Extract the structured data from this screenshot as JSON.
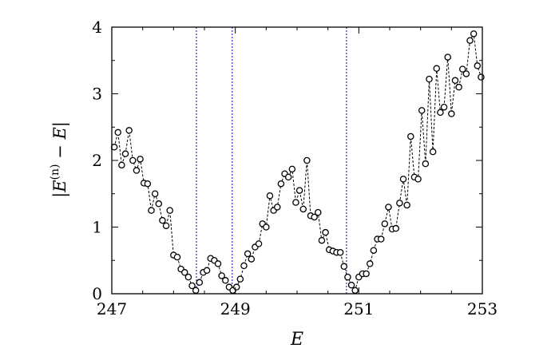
{
  "chart_data": {
    "type": "scatter",
    "xlabel": "E",
    "ylabel": "|E(n) − E|",
    "ylabel_parts": {
      "bar_left": "|",
      "E": "E",
      "sup": "(n)",
      "rest": " − ",
      "E2": "E",
      "bar_right": "|"
    },
    "xlim": [
      247,
      253
    ],
    "ylim": [
      0,
      4
    ],
    "xticks": [
      "247",
      "249",
      "251",
      "253"
    ],
    "yticks": [
      "0",
      "1",
      "2",
      "3",
      "4"
    ],
    "grid": false,
    "legend": "none",
    "colors": {
      "markers": "#000000",
      "connector": "#000000",
      "vlines": "#2b2bd9"
    },
    "vlines": [
      248.37,
      248.95,
      250.8
    ],
    "series": [
      {
        "x": [
          247.04,
          247.1,
          247.16,
          247.22,
          247.28,
          247.34,
          247.4,
          247.46,
          247.52,
          247.58,
          247.64,
          247.7,
          247.76,
          247.82,
          247.88,
          247.94,
          248.0,
          248.06,
          248.12,
          248.18,
          248.24,
          248.3,
          248.36,
          248.42,
          248.48,
          248.54,
          248.6,
          248.66,
          248.72,
          248.78,
          248.84,
          248.9,
          248.96,
          249.02,
          249.08,
          249.14,
          249.2,
          249.26,
          249.32,
          249.38,
          249.44,
          249.5,
          249.56,
          249.62,
          249.68,
          249.74,
          249.8,
          249.86,
          249.92,
          249.98,
          250.04,
          250.1,
          250.16,
          250.22,
          250.28,
          250.34,
          250.4,
          250.46,
          250.52,
          250.58,
          250.64,
          250.7,
          250.76,
          250.82,
          250.88,
          250.94,
          251.0,
          251.06,
          251.12,
          251.18,
          251.24,
          251.3,
          251.36,
          251.42,
          251.48,
          251.54,
          251.6,
          251.66,
          251.72,
          251.78,
          251.84,
          251.9,
          251.96,
          252.02,
          252.08,
          252.14,
          252.2,
          252.26,
          252.32,
          252.38,
          252.44,
          252.5,
          252.56,
          252.62,
          252.68,
          252.74,
          252.8,
          252.86,
          252.92,
          252.98
        ],
        "y": [
          2.2,
          2.42,
          1.93,
          2.1,
          2.45,
          2.0,
          1.85,
          2.02,
          1.66,
          1.65,
          1.25,
          1.5,
          1.35,
          1.1,
          1.02,
          1.25,
          0.58,
          0.55,
          0.37,
          0.32,
          0.25,
          0.12,
          0.05,
          0.17,
          0.32,
          0.35,
          0.53,
          0.5,
          0.45,
          0.27,
          0.2,
          0.1,
          0.05,
          0.1,
          0.22,
          0.42,
          0.6,
          0.52,
          0.7,
          0.75,
          1.05,
          1.0,
          1.47,
          1.25,
          1.3,
          1.65,
          1.8,
          1.75,
          1.87,
          1.37,
          1.55,
          1.27,
          2.0,
          1.17,
          1.15,
          1.22,
          0.8,
          0.92,
          0.66,
          0.64,
          0.62,
          0.62,
          0.41,
          0.25,
          0.13,
          0.05,
          0.25,
          0.3,
          0.3,
          0.45,
          0.65,
          0.82,
          0.82,
          1.05,
          1.3,
          0.97,
          0.98,
          1.36,
          1.72,
          1.33,
          2.36,
          1.75,
          1.72,
          2.75,
          1.95,
          3.22,
          2.13,
          3.38,
          2.72,
          2.8,
          3.55,
          2.7,
          3.2,
          3.1,
          3.37,
          3.3,
          3.8,
          3.9,
          3.42,
          3.25
        ]
      }
    ]
  }
}
